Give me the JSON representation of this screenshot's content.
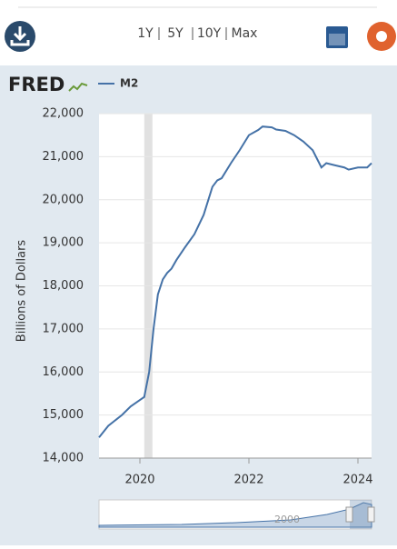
{
  "ui": {
    "logo": "FRED",
    "periods": [
      "1Y",
      "5Y",
      "10Y",
      "Max"
    ],
    "navigator_label": "2000"
  },
  "chart_data": {
    "type": "line",
    "y_label": "Billions of Dollars",
    "x": [
      2019.25,
      2019.42,
      2019.67,
      2019.83,
      2020.0,
      2020.08,
      2020.17,
      2020.25,
      2020.33,
      2020.42,
      2020.5,
      2020.58,
      2020.67,
      2020.83,
      2021.0,
      2021.17,
      2021.33,
      2021.42,
      2021.5,
      2021.67,
      2021.83,
      2022.0,
      2022.17,
      2022.25,
      2022.42,
      2022.5,
      2022.67,
      2022.83,
      2023.0,
      2023.17,
      2023.25,
      2023.33,
      2023.42,
      2023.58,
      2023.75,
      2023.83,
      2024.0,
      2024.17,
      2024.25
    ],
    "series": [
      {
        "name": "M2",
        "color": "#4572a7",
        "values": [
          14480,
          14750,
          15000,
          15200,
          15350,
          15420,
          16000,
          17000,
          17800,
          18150,
          18300,
          18400,
          18600,
          18900,
          19200,
          19650,
          20300,
          20450,
          20500,
          20850,
          21150,
          21500,
          21620,
          21700,
          21680,
          21630,
          21600,
          21500,
          21350,
          21150,
          20950,
          20750,
          20850,
          20800,
          20750,
          20700,
          20750,
          20750,
          20850
        ]
      }
    ],
    "shaded_ranges": [
      [
        2020.08,
        2020.23
      ]
    ],
    "xlim": [
      2019.25,
      2024.25
    ],
    "xticks": [
      2020,
      2022,
      2024
    ],
    "ylim": [
      14000,
      22000
    ],
    "yticks": [
      {
        "value": 14000,
        "label": "14,000"
      },
      {
        "value": 15000,
        "label": "15,000"
      },
      {
        "value": 16000,
        "label": "16,000"
      },
      {
        "value": 17000,
        "label": "17,000"
      },
      {
        "value": 18000,
        "label": "18,000"
      },
      {
        "value": 19000,
        "label": "19,000"
      },
      {
        "value": 20000,
        "label": "20,000"
      },
      {
        "value": 21000,
        "label": "21,000"
      },
      {
        "value": 22000,
        "label": "22,000"
      }
    ],
    "grid": true
  }
}
